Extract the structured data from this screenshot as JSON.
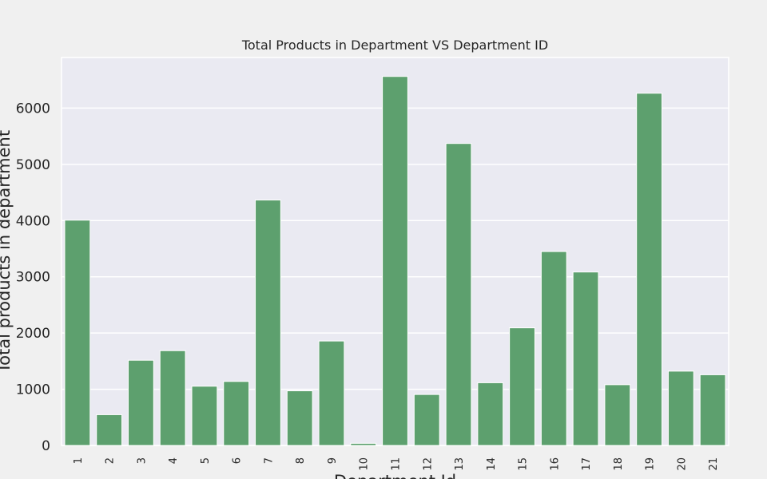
{
  "chart_data": {
    "type": "bar",
    "title": "Total Products in Department VS Department ID",
    "xlabel": "Department Id",
    "ylabel": "Total products in department",
    "categories": [
      "1",
      "2",
      "3",
      "4",
      "5",
      "6",
      "7",
      "8",
      "9",
      "10",
      "11",
      "12",
      "13",
      "14",
      "15",
      "16",
      "17",
      "18",
      "19",
      "20",
      "21"
    ],
    "values": [
      4007,
      548,
      1516,
      1686,
      1054,
      1139,
      4365,
      972,
      1858,
      38,
      6563,
      907,
      5371,
      1116,
      2092,
      3449,
      3085,
      1081,
      6264,
      1322,
      1258
    ],
    "ylim": [
      0,
      6900
    ],
    "yticks": [
      0,
      1000,
      2000,
      3000,
      4000,
      5000,
      6000
    ],
    "grid": true,
    "colors": {
      "bar": "#5da06e",
      "plot_bg": "#eaeaf2",
      "figure_bg": "#f0f0f0",
      "grid": "#ffffff"
    }
  }
}
